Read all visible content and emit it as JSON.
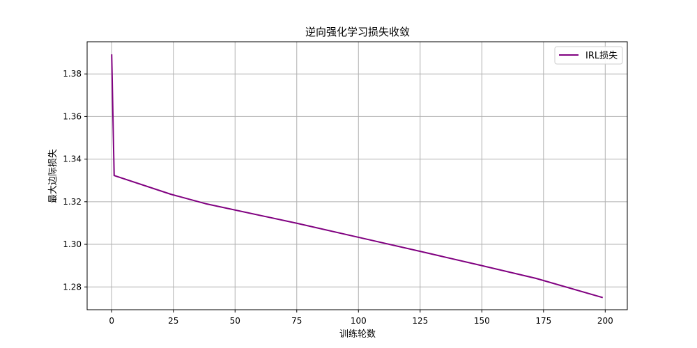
{
  "chart_data": {
    "type": "line",
    "title": "逆向强化学习损失收敛",
    "xlabel": "训练轮数",
    "ylabel": "最大边际损失",
    "xlim": [
      -9.95,
      208.95
    ],
    "ylim": [
      1.2693,
      1.3951
    ],
    "xticks": [
      0,
      25,
      50,
      75,
      100,
      125,
      150,
      175,
      200
    ],
    "yticks": [
      1.28,
      1.3,
      1.32,
      1.34,
      1.36,
      1.38
    ],
    "ytick_labels": [
      "1.28",
      "1.30",
      "1.32",
      "1.34",
      "1.36",
      "1.38"
    ],
    "grid": true,
    "legend_position": "top-right",
    "series": [
      {
        "name": "IRL损失",
        "color": "#800080",
        "x": [
          0,
          1,
          24,
          38,
          75,
          100,
          125,
          150,
          172,
          199
        ],
        "y": [
          1.3892,
          1.3323,
          1.3235,
          1.3191,
          1.3099,
          1.3033,
          1.2967,
          1.29,
          1.284,
          1.275
        ]
      }
    ]
  }
}
